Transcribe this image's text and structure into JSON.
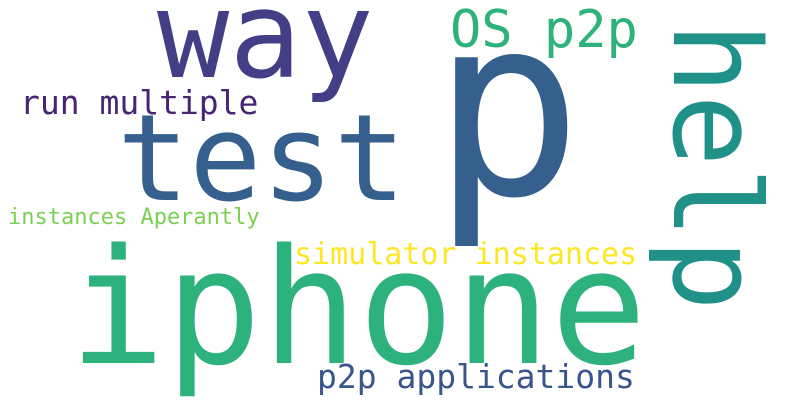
{
  "words": [
    {
      "key": "way",
      "text": "way",
      "color": "#433e85"
    },
    {
      "key": "p",
      "text": "p",
      "color": "#355f8d"
    },
    {
      "key": "os",
      "text": "OS p2p",
      "color": "#2db27d"
    },
    {
      "key": "help",
      "text": "help",
      "color": "#1f9188"
    },
    {
      "key": "run",
      "text": "run multiple",
      "color": "#482475"
    },
    {
      "key": "test",
      "text": "test",
      "color": "#355f8d"
    },
    {
      "key": "instances",
      "text": "instances Aperantly",
      "color": "#7ad151"
    },
    {
      "key": "sim",
      "text": "simulator instances",
      "color": "#fde725"
    },
    {
      "key": "iphone",
      "text": "iphone",
      "color": "#2db27d"
    },
    {
      "key": "p2p",
      "text": "p2p applications",
      "color": "#39558c"
    }
  ]
}
